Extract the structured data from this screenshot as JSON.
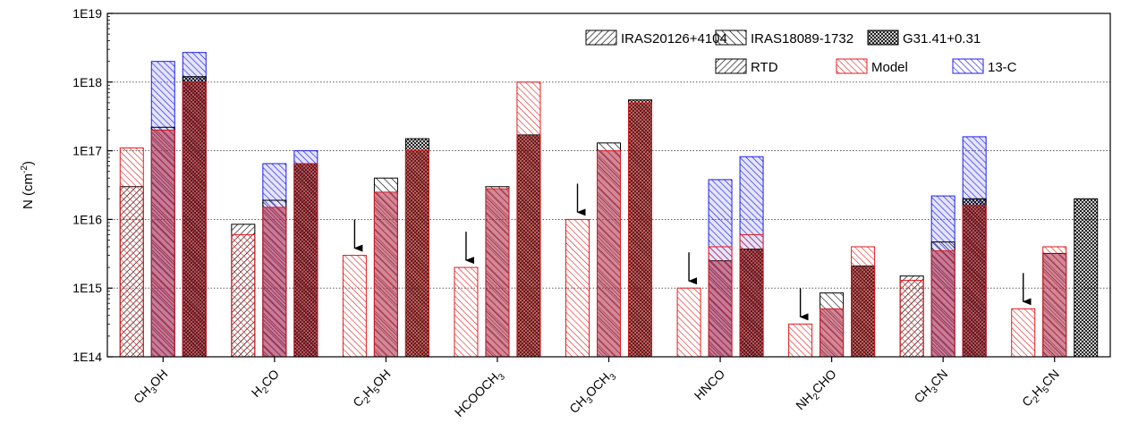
{
  "chart_data": {
    "type": "bar",
    "y_scale": "log",
    "ylim": [
      100000000000000.0,
      1e+19
    ],
    "ylabel": {
      "main": "N (cm",
      "sup": "-2",
      "end": ")"
    },
    "yticks": [
      {
        "value": 100000000000000.0,
        "label": "1E14"
      },
      {
        "value": 1000000000000000.0,
        "label": "1E15"
      },
      {
        "value": 1e+16,
        "label": "1E16"
      },
      {
        "value": 1e+17,
        "label": "1E17"
      },
      {
        "value": 1e+18,
        "label": "1E18"
      },
      {
        "value": 1e+19,
        "label": "1E19"
      }
    ],
    "grid": "horizontal dotted",
    "legend_position": "top-right",
    "categories": [
      {
        "parts": [
          [
            "CH",
            0
          ],
          [
            "3",
            -1
          ],
          [
            "OH",
            0
          ]
        ]
      },
      {
        "parts": [
          [
            "H",
            0
          ],
          [
            "2",
            -1
          ],
          [
            "CO",
            0
          ]
        ]
      },
      {
        "parts": [
          [
            "C",
            0
          ],
          [
            "2",
            -1
          ],
          [
            "H",
            0
          ],
          [
            "5",
            -1
          ],
          [
            "OH",
            0
          ]
        ]
      },
      {
        "parts": [
          [
            "HCOOCH",
            0
          ],
          [
            "3",
            -1
          ]
        ]
      },
      {
        "parts": [
          [
            "CH",
            0
          ],
          [
            "3",
            -1
          ],
          [
            "OCH",
            0
          ],
          [
            "3",
            -1
          ]
        ]
      },
      {
        "parts": [
          [
            "HNCO",
            0
          ]
        ]
      },
      {
        "parts": [
          [
            "NH",
            0
          ],
          [
            "2",
            -1
          ],
          [
            "CHO",
            0
          ]
        ]
      },
      {
        "parts": [
          [
            "CH",
            0
          ],
          [
            "3",
            -1
          ],
          [
            "CN",
            0
          ]
        ]
      },
      {
        "parts": [
          [
            "C",
            0
          ],
          [
            "2",
            -1
          ],
          [
            "H",
            0
          ],
          [
            "5",
            -1
          ],
          [
            "CN",
            0
          ]
        ]
      }
    ],
    "sources": [
      {
        "name": "IRAS20126+4104",
        "pattern": "diag-dense"
      },
      {
        "name": "IRAS18089-1732",
        "pattern": "anti-diag"
      },
      {
        "name": "G31.41+0.31",
        "pattern": "cross-hatch"
      }
    ],
    "components": [
      {
        "name": "RTD",
        "color": "#000000"
      },
      {
        "name": "Model",
        "color": "#e41a1c"
      },
      {
        "name": "13-C",
        "color": "#1f1fe6"
      }
    ],
    "series": [
      {
        "source": 0,
        "rtd": [
          3e+16,
          8500000000000000.0,
          null,
          null,
          null,
          null,
          null,
          1500000000000000.0,
          null
        ],
        "model": [
          1.1e+17,
          6000000000000000.0,
          3000000000000000.0,
          2000000000000000.0,
          1e+16,
          1000000000000000.0,
          300000000000000.0,
          1300000000000000.0,
          500000000000000.0
        ],
        "c13": [
          null,
          null,
          null,
          null,
          null,
          null,
          null,
          null,
          null
        ],
        "upper_limit_arrow": [
          false,
          false,
          true,
          true,
          true,
          true,
          true,
          false,
          true
        ]
      },
      {
        "source": 1,
        "rtd": [
          2.2e+17,
          1.9e+16,
          4e+16,
          3e+16,
          1.3e+17,
          2500000000000000.0,
          850000000000000.0,
          4700000000000000.0,
          3200000000000000.0
        ],
        "model": [
          2e+17,
          1.5e+16,
          2.5e+16,
          2.8e+16,
          1e+17,
          4000000000000000.0,
          500000000000000.0,
          3500000000000000.0,
          4000000000000000.0
        ],
        "c13": [
          2e+18,
          6.5e+16,
          null,
          null,
          null,
          3.8e+16,
          null,
          2.2e+16,
          null
        ]
      },
      {
        "source": 2,
        "rtd": [
          1.2e+18,
          6.5e+16,
          1.5e+17,
          1.7e+17,
          5.5e+17,
          3700000000000000.0,
          2100000000000000.0,
          2e+16,
          2e+16
        ],
        "model": [
          1e+18,
          6.5e+16,
          1e+17,
          1e+18,
          5e+17,
          6000000000000000.0,
          4000000000000000.0,
          1.6e+16,
          null
        ],
        "c13": [
          2.7e+18,
          1e+17,
          null,
          null,
          null,
          8.2e+16,
          null,
          1.6e+17,
          null
        ]
      }
    ]
  }
}
